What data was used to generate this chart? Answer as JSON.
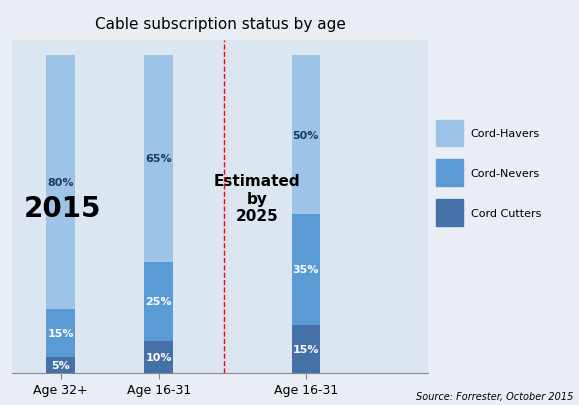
{
  "title": "Cable subscription status by age",
  "categories": [
    "Age 32+",
    "Age 16-31",
    "Age 16-31"
  ],
  "cord_cutters": [
    5,
    10,
    15
  ],
  "cord_nevers": [
    15,
    25,
    35
  ],
  "cord_havers": [
    80,
    65,
    50
  ],
  "bar_colors": {
    "cord_cutters": "#4472A8",
    "cord_nevers": "#5B9BD5",
    "cord_havers": "#9DC3E6"
  },
  "fig_bg_color": "#E8EEF4",
  "plot_bg_color": "#DCE6F1",
  "right_bg_color": "#F2F2F2",
  "source_text": "Source: Forrester, October 2015",
  "label_2015": "2015",
  "label_2025": "Estimated\nby\n2025",
  "bar_width": 0.35,
  "figsize": [
    5.79,
    4.06
  ],
  "dpi": 100,
  "x_positions": [
    0.5,
    1.7,
    3.5
  ],
  "dashed_line_x": 2.5,
  "xlim": [
    -0.1,
    5.0
  ],
  "ylim": [
    0,
    105
  ]
}
